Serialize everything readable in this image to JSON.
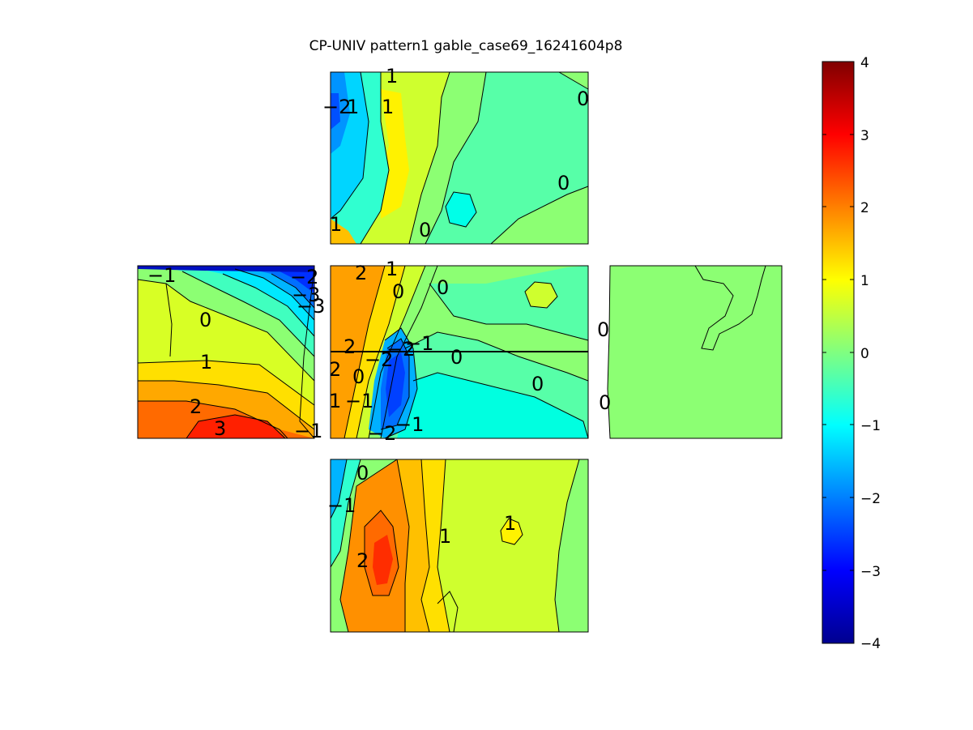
{
  "chart_data": {
    "type": "heatmap",
    "title": "CP-UNIV pattern1 gable_case69_16241604p8",
    "subtype": "filled-contour (5 faces: roof, left wall, front, right wall, bottom)",
    "colormap": "jet",
    "colorbar": {
      "range": [
        -4,
        4
      ],
      "ticks": [
        "4",
        "3",
        "2",
        "1",
        "0",
        "−1",
        "−2",
        "−3",
        "−4"
      ],
      "placement": "right"
    },
    "panels": [
      {
        "name": "top",
        "contour_labels": [
          "1",
          "−2",
          "1",
          "1",
          "0",
          "0",
          "1",
          "0"
        ],
        "value_range": [
          -2.5,
          1.5
        ]
      },
      {
        "name": "left",
        "contour_labels": [
          "−1",
          "−2",
          "−3",
          "−3",
          "0",
          "1",
          "2",
          "3",
          "−1"
        ],
        "value_range": [
          -4,
          3.5
        ]
      },
      {
        "name": "center",
        "contour_labels": [
          "2",
          "1",
          "0",
          "0",
          "2",
          "−2",
          "−1",
          "−2",
          "0",
          "2",
          "0",
          "0",
          "1",
          "−1",
          "−2",
          "−1"
        ],
        "value_range": [
          -3,
          2.5
        ]
      },
      {
        "name": "right",
        "contour_labels": [
          "0",
          "0"
        ],
        "value_range": [
          0,
          0.5
        ]
      },
      {
        "name": "bottom",
        "contour_labels": [
          "0",
          "−1",
          "1",
          "1",
          "2"
        ],
        "value_range": [
          -1.5,
          2.5
        ]
      }
    ],
    "grid": false
  }
}
